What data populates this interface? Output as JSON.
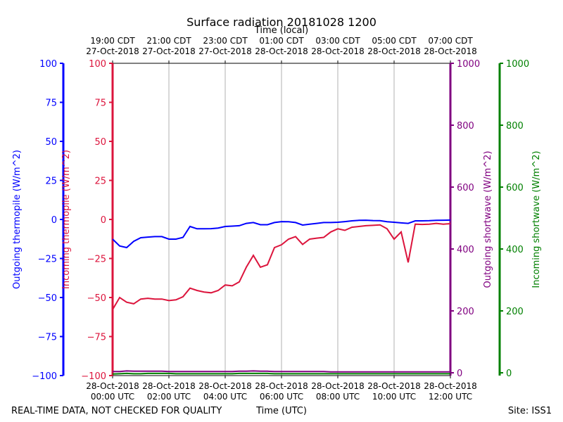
{
  "chart_data": {
    "type": "line",
    "title": "Surface radiation 20181028 1200",
    "xlabel": "Time (UTC)",
    "x2label": "Time (local)",
    "footer_left": "REAL-TIME DATA, NOT CHECKED FOR QUALITY",
    "footer_right": "Site: ISS1",
    "grid": true,
    "xlim": [
      "2018-10-28 00:00",
      "2018-10-28 12:00"
    ],
    "xticks": [
      {
        "value": "2018-10-28 00:00",
        "label": [
          "28-Oct-2018",
          "00:00 UTC"
        ]
      },
      {
        "value": "2018-10-28 02:00",
        "label": [
          "28-Oct-2018",
          "02:00 UTC"
        ]
      },
      {
        "value": "2018-10-28 04:00",
        "label": [
          "28-Oct-2018",
          "04:00 UTC"
        ]
      },
      {
        "value": "2018-10-28 06:00",
        "label": [
          "28-Oct-2018",
          "06:00 UTC"
        ]
      },
      {
        "value": "2018-10-28 08:00",
        "label": [
          "28-Oct-2018",
          "08:00 UTC"
        ]
      },
      {
        "value": "2018-10-28 10:00",
        "label": [
          "28-Oct-2018",
          "10:00 UTC"
        ]
      },
      {
        "value": "2018-10-28 12:00",
        "label": [
          "28-Oct-2018",
          "12:00 UTC"
        ]
      }
    ],
    "x2ticks": [
      {
        "value": "2018-10-28 00:00",
        "label": [
          "19:00 CDT",
          "27-Oct-2018"
        ]
      },
      {
        "value": "2018-10-28 02:00",
        "label": [
          "21:00 CDT",
          "27-Oct-2018"
        ]
      },
      {
        "value": "2018-10-28 04:00",
        "label": [
          "23:00 CDT",
          "27-Oct-2018"
        ]
      },
      {
        "value": "2018-10-28 06:00",
        "label": [
          "01:00 CDT",
          "28-Oct-2018"
        ]
      },
      {
        "value": "2018-10-28 08:00",
        "label": [
          "03:00 CDT",
          "28-Oct-2018"
        ]
      },
      {
        "value": "2018-10-28 10:00",
        "label": [
          "05:00 CDT",
          "28-Oct-2018"
        ]
      },
      {
        "value": "2018-10-28 12:00",
        "label": [
          "07:00 CDT",
          "28-Oct-2018"
        ]
      }
    ],
    "y_axes": [
      {
        "label": "Outgoing thermopile (W/m^2)",
        "color": "#0000ff",
        "side": "left",
        "lim": [
          -100,
          100
        ],
        "ticks": [
          {
            "value": -100,
            "label": "−100"
          },
          {
            "value": -75,
            "label": "−75"
          },
          {
            "value": -50,
            "label": "−50"
          },
          {
            "value": -25,
            "label": "−25"
          },
          0,
          25,
          50,
          75,
          100
        ]
      },
      {
        "label": "Incoming thermopile (W/m^2)",
        "color": "#dc143c",
        "side": "left",
        "lim": [
          -100,
          100
        ],
        "ticks": [
          {
            "value": -100,
            "label": "−100"
          },
          {
            "value": -75,
            "label": "−75"
          },
          {
            "value": -50,
            "label": "−50"
          },
          {
            "value": -25,
            "label": "−25"
          },
          0,
          25,
          50,
          75,
          100
        ]
      },
      {
        "label": "Outgoing shortwave (W/m^2)",
        "color": "#800080",
        "side": "right",
        "lim": [
          -9,
          1000
        ],
        "ticks": [
          0,
          200,
          400,
          600,
          800,
          1000
        ]
      },
      {
        "label": "Incoming shortwave (W/m^2)",
        "color": "#008000",
        "side": "right",
        "lim": [
          -9,
          1000
        ],
        "ticks": [
          0,
          200,
          400,
          600,
          800,
          1000
        ]
      }
    ],
    "x": [
      "2018-10-28 00:00",
      "2018-10-28 00:15",
      "2018-10-28 00:30",
      "2018-10-28 00:45",
      "2018-10-28 01:00",
      "2018-10-28 01:15",
      "2018-10-28 01:30",
      "2018-10-28 01:45",
      "2018-10-28 02:00",
      "2018-10-28 02:15",
      "2018-10-28 02:30",
      "2018-10-28 02:45",
      "2018-10-28 03:00",
      "2018-10-28 03:15",
      "2018-10-28 03:30",
      "2018-10-28 03:45",
      "2018-10-28 04:00",
      "2018-10-28 04:15",
      "2018-10-28 04:30",
      "2018-10-28 04:45",
      "2018-10-28 05:00",
      "2018-10-28 05:15",
      "2018-10-28 05:30",
      "2018-10-28 05:45",
      "2018-10-28 06:00",
      "2018-10-28 06:15",
      "2018-10-28 06:30",
      "2018-10-28 06:45",
      "2018-10-28 07:00",
      "2018-10-28 07:15",
      "2018-10-28 07:30",
      "2018-10-28 07:45",
      "2018-10-28 08:00",
      "2018-10-28 08:15",
      "2018-10-28 08:30",
      "2018-10-28 08:45",
      "2018-10-28 09:00",
      "2018-10-28 09:15",
      "2018-10-28 09:30",
      "2018-10-28 09:45",
      "2018-10-28 10:00",
      "2018-10-28 10:15",
      "2018-10-28 10:30",
      "2018-10-28 10:45",
      "2018-10-28 11:00",
      "2018-10-28 11:15",
      "2018-10-28 11:30",
      "2018-10-28 11:45",
      "2018-10-28 12:00"
    ],
    "series": [
      {
        "axis": 0,
        "color": "#0000ff",
        "values": [
          -12.6,
          -17,
          -18,
          -14,
          -11.7,
          -11.3,
          -11,
          -11,
          -12.6,
          -12.6,
          -11.5,
          -4.5,
          -6,
          -6,
          -5.9,
          -5.5,
          -4.5,
          -4.3,
          -4,
          -2.5,
          -2,
          -3.4,
          -3.4,
          -2,
          -1.4,
          -1.5,
          -2,
          -3.6,
          -3,
          -2.5,
          -2,
          -2,
          -1.8,
          -1.4,
          -0.9,
          -0.6,
          -0.5,
          -0.7,
          -0.8,
          -1.5,
          -1.8,
          -2.2,
          -2.5,
          -0.9,
          -0.9,
          -0.8,
          -0.6,
          -0.5,
          -0.4
        ]
      },
      {
        "axis": 1,
        "color": "#dc143c",
        "values": [
          -57.7,
          -50,
          -53,
          -54,
          -51,
          -50.5,
          -51,
          -51,
          -52,
          -51.5,
          -49.5,
          -44,
          -45.5,
          -46.5,
          -47,
          -45.5,
          -42,
          -42.5,
          -40,
          -30.6,
          -23,
          -30.6,
          -29,
          -18,
          -16.2,
          -12.6,
          -11,
          -16,
          -12.6,
          -12,
          -11.5,
          -8,
          -6,
          -7,
          -5,
          -4.5,
          -4,
          -3.8,
          -3.5,
          -6,
          -12.6,
          -8,
          -27.5,
          -3,
          -3.2,
          -3,
          -2.5,
          -3,
          -2.7
        ]
      },
      {
        "axis": 2,
        "color": "#800080",
        "values": [
          4,
          4,
          6,
          5,
          5,
          5,
          5,
          5,
          4,
          4,
          4,
          4,
          4,
          4,
          4,
          4,
          4,
          4,
          5,
          5,
          6,
          5,
          5,
          4,
          4,
          4,
          4,
          4,
          4,
          4,
          4,
          3,
          3,
          3,
          3,
          3,
          3,
          3,
          3,
          3,
          3,
          3,
          3,
          3,
          3,
          3,
          3,
          3,
          3
        ]
      },
      {
        "axis": 3,
        "color": "#008000",
        "values": [
          -4,
          -3,
          -2,
          -3,
          -3,
          -2,
          -2,
          -2,
          -2,
          -3,
          -3,
          -3,
          -3,
          -3,
          -3,
          -3,
          -3,
          -3,
          -2,
          -2,
          -2,
          -2,
          -2,
          -3,
          -3,
          -3,
          -3,
          -3,
          -3,
          -3,
          -3,
          -3,
          -3,
          -3,
          -3,
          -3,
          -3,
          -3,
          -3,
          -3,
          -3,
          -3,
          -3,
          -3,
          -3,
          -3,
          -3,
          -3,
          -3
        ]
      }
    ]
  }
}
